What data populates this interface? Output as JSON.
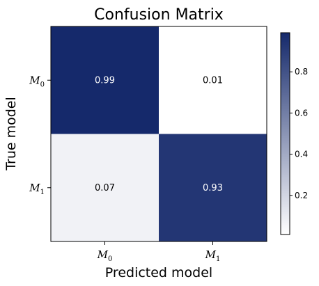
{
  "chart_data": {
    "type": "heatmap",
    "title": "Confusion Matrix",
    "xlabel": "Predicted model",
    "ylabel": "True model",
    "x_categories": [
      {
        "base": "M",
        "sub": "0"
      },
      {
        "base": "M",
        "sub": "1"
      }
    ],
    "y_categories": [
      {
        "base": "M",
        "sub": "0"
      },
      {
        "base": "M",
        "sub": "1"
      }
    ],
    "values": [
      [
        0.99,
        0.01
      ],
      [
        0.07,
        0.93
      ]
    ],
    "cell_labels": [
      [
        "0.99",
        "0.01"
      ],
      [
        "0.07",
        "0.93"
      ]
    ],
    "colorbar": {
      "range": [
        0.01,
        0.99
      ],
      "ticks": [
        0.2,
        0.4,
        0.6,
        0.8
      ],
      "tick_labels": [
        "0.2",
        "0.4",
        "0.6",
        "0.8"
      ]
    },
    "colormap": {
      "low": "#ffffff",
      "high": "#15296b"
    },
    "text_colors": {
      "light": "#ffffff",
      "dark": "#000000"
    }
  }
}
